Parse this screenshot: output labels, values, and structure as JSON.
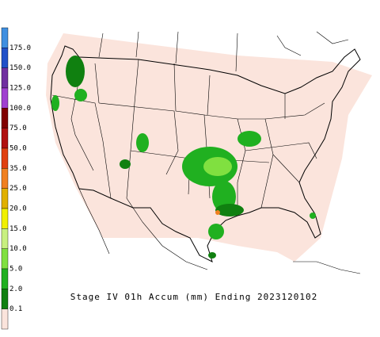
{
  "title": "Stage IV 01h Accum (mm) Ending 2023120102",
  "legend": {
    "labels": [
      "175.0",
      "150.0",
      "125.0",
      "100.0",
      "75.0",
      "50.0",
      "35.0",
      "25.0",
      "20.0",
      "15.0",
      "10.0",
      "5.0",
      "2.0",
      "0.1"
    ],
    "colors": [
      "#3f8fe0",
      "#2050c8",
      "#7030a0",
      "#a040d0",
      "#800000",
      "#b01010",
      "#e04010",
      "#f08020",
      "#e0b000",
      "#f0f000",
      "#c8f080",
      "#80e040",
      "#20b020",
      "#108010",
      "#fbe4dc"
    ]
  }
}
